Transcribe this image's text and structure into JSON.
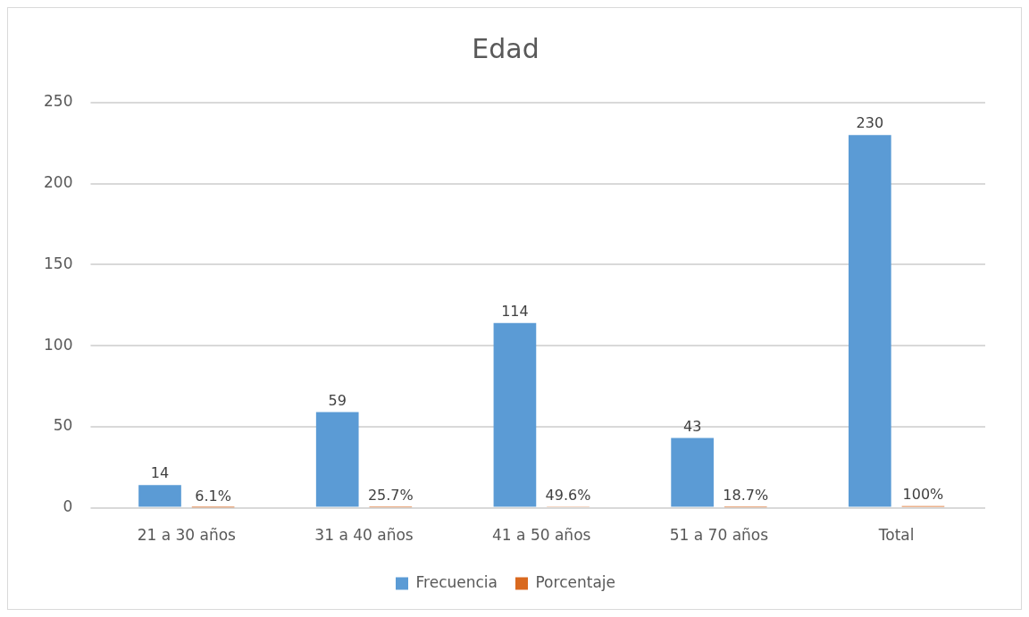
{
  "chart_data": {
    "type": "bar",
    "title": "Edad",
    "categories": [
      "21 a 30 años",
      "31 a 40 años",
      "41 a 50 años",
      "51 a 70 años",
      "Total"
    ],
    "series": [
      {
        "name": "Frecuencia",
        "color": "#5b9bd5",
        "values": [
          14,
          59,
          114,
          43,
          230
        ],
        "value_labels": [
          "14",
          "59",
          "114",
          "43",
          "230"
        ]
      },
      {
        "name": "Porcentaje",
        "color": "#d9691f",
        "values": [
          0.061,
          0.257,
          0.496,
          0.187,
          1
        ],
        "value_labels": [
          "6.1%",
          "25.7%",
          "49.6%",
          "18.7%",
          "100%"
        ]
      }
    ],
    "ylim": [
      0,
      250
    ],
    "yticks": [
      0,
      50,
      100,
      150,
      200,
      250
    ],
    "grid": "y",
    "legend": "bottom"
  }
}
